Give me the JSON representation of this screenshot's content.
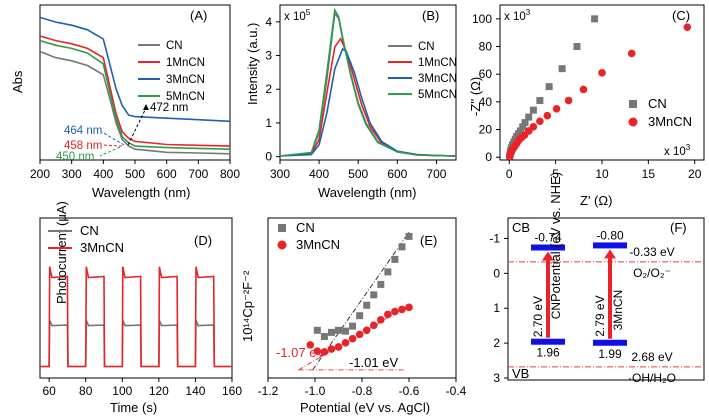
{
  "colors": {
    "CN": "#777777",
    "1MnCN": "#e8242a",
    "3MnCN": "#1f5fb4",
    "5MnCN": "#2e9c4a",
    "blue_bar": "#1010e6",
    "red_arrow": "#e8242a",
    "dashdot": "#dd4444"
  },
  "chart_data": [
    {
      "id": "A",
      "type": "line",
      "panel_label": "(A)",
      "xlabel": "Wavelength (nm)",
      "ylabel": "Abs",
      "xlim": [
        200,
        800
      ],
      "xticks": [
        "200",
        "300",
        "400",
        "500",
        "600",
        "700",
        "800"
      ],
      "series": [
        {
          "name": "CN",
          "x": [
            200,
            250,
            300,
            350,
            400,
            420,
            440,
            460,
            480,
            500,
            600,
            700,
            800
          ],
          "y": [
            0.7,
            0.66,
            0.64,
            0.61,
            0.55,
            0.4,
            0.24,
            0.13,
            0.09,
            0.07,
            0.05,
            0.045,
            0.04
          ]
        },
        {
          "name": "1MnCN",
          "x": [
            200,
            250,
            300,
            350,
            400,
            420,
            440,
            460,
            480,
            500,
            600,
            700,
            800
          ],
          "y": [
            0.8,
            0.77,
            0.75,
            0.72,
            0.66,
            0.48,
            0.3,
            0.18,
            0.14,
            0.12,
            0.1,
            0.095,
            0.09
          ]
        },
        {
          "name": "3MnCN",
          "x": [
            200,
            250,
            300,
            350,
            400,
            420,
            440,
            460,
            480,
            500,
            600,
            700,
            800
          ],
          "y": [
            0.92,
            0.89,
            0.87,
            0.84,
            0.78,
            0.62,
            0.46,
            0.35,
            0.29,
            0.28,
            0.27,
            0.26,
            0.25
          ]
        },
        {
          "name": "5MnCN",
          "x": [
            200,
            250,
            300,
            350,
            400,
            420,
            440,
            460,
            480,
            500,
            600,
            700,
            800
          ],
          "y": [
            0.77,
            0.74,
            0.72,
            0.69,
            0.62,
            0.44,
            0.27,
            0.15,
            0.11,
            0.09,
            0.08,
            0.075,
            0.07
          ]
        }
      ],
      "annotations": [
        "472 nm",
        "464 nm",
        "458 nm",
        "450 nm"
      ]
    },
    {
      "id": "B",
      "type": "line",
      "panel_label": "(B)",
      "xlabel": "Wavelength (nm)",
      "ylabel": "Intensity (a.u.)",
      "y_multiplier": "x 10",
      "y_multiplier_exp": "5",
      "xlim": [
        300,
        750
      ],
      "ylim": [
        -0.1,
        4.5
      ],
      "xticks": [
        "300",
        "400",
        "500",
        "600",
        "700"
      ],
      "yticks": [
        "0",
        "1",
        "2",
        "3",
        "4"
      ],
      "series": [
        {
          "name": "CN",
          "x": [
            300,
            380,
            400,
            420,
            440,
            450,
            460,
            480,
            500,
            520,
            550,
            600,
            650,
            700,
            750
          ],
          "y": [
            0.02,
            0.1,
            0.7,
            2.3,
            4.25,
            4.1,
            3.5,
            2.5,
            1.6,
            1.0,
            0.45,
            0.15,
            0.06,
            0.03,
            0.02
          ]
        },
        {
          "name": "1MnCN",
          "x": [
            300,
            380,
            400,
            420,
            440,
            455,
            470,
            490,
            510,
            530,
            560,
            600,
            650,
            700,
            750
          ],
          "y": [
            0.02,
            0.08,
            0.5,
            1.9,
            3.25,
            3.5,
            3.1,
            2.3,
            1.5,
            0.9,
            0.4,
            0.14,
            0.05,
            0.03,
            0.02
          ]
        },
        {
          "name": "3MnCN",
          "x": [
            300,
            380,
            400,
            420,
            440,
            460,
            470,
            490,
            510,
            530,
            560,
            600,
            650,
            700,
            750
          ],
          "y": [
            0.02,
            0.06,
            0.35,
            1.3,
            2.6,
            3.2,
            3.1,
            2.5,
            1.7,
            1.0,
            0.45,
            0.16,
            0.06,
            0.03,
            0.02
          ]
        },
        {
          "name": "5MnCN",
          "x": [
            300,
            380,
            400,
            420,
            440,
            450,
            460,
            480,
            500,
            520,
            550,
            600,
            650,
            700,
            750
          ],
          "y": [
            0.02,
            0.12,
            0.8,
            2.5,
            4.35,
            4.15,
            3.55,
            2.45,
            1.55,
            0.95,
            0.42,
            0.14,
            0.05,
            0.03,
            0.02
          ]
        }
      ]
    },
    {
      "id": "C",
      "type": "scatter",
      "panel_label": "(C)",
      "xlabel": "Z' (Ω)",
      "ylabel": "-Z'' (Ω)",
      "y_multiplier": "x 10",
      "y_multiplier_exp": "3",
      "x_multiplier": "x 10",
      "x_multiplier_exp": "3",
      "xlim": [
        -1,
        21
      ],
      "ylim": [
        -2,
        110
      ],
      "xticks": [
        "0",
        "5",
        "10",
        "15",
        "20"
      ],
      "yticks": [
        "0",
        "20",
        "40",
        "60",
        "80",
        "100"
      ],
      "series": [
        {
          "name": "CN",
          "x": [
            0.05,
            0.1,
            0.15,
            0.25,
            0.35,
            0.5,
            0.65,
            0.8,
            1.0,
            1.2,
            1.45,
            1.7,
            2.1,
            2.6,
            3.3,
            4.3,
            5.7,
            7.3,
            9.2
          ],
          "y": [
            1,
            3,
            5,
            7,
            9,
            11,
            13,
            15,
            17,
            19,
            22,
            25,
            29,
            34,
            41,
            51,
            64,
            80,
            100
          ]
        },
        {
          "name": "3MnCN",
          "x": [
            0.05,
            0.1,
            0.2,
            0.3,
            0.45,
            0.6,
            0.8,
            1.0,
            1.3,
            1.65,
            2.1,
            2.6,
            3.3,
            4.1,
            5.1,
            6.4,
            8.0,
            10.0,
            13.2,
            19.2
          ],
          "y": [
            0.5,
            2,
            3.5,
            5,
            6.5,
            8,
            10,
            12,
            14,
            16,
            19,
            22,
            26,
            30,
            35,
            41,
            49,
            61,
            75,
            94
          ]
        }
      ]
    },
    {
      "id": "D",
      "type": "line",
      "panel_label": "(D)",
      "xlabel": "Time (s)",
      "ylabel": "Photocurrent (μA)",
      "xlim": [
        55,
        160
      ],
      "ylim": [
        0,
        1.0
      ],
      "xticks": [
        "60",
        "80",
        "100",
        "120",
        "140",
        "160"
      ],
      "series": [
        {
          "name": "CN",
          "on_level": 0.26,
          "off_level": 0.03,
          "on_intervals": [
            [
              60,
              70
            ],
            [
              80,
              90
            ],
            [
              100,
              110
            ],
            [
              120,
              130
            ],
            [
              140,
              150
            ]
          ]
        },
        {
          "name": "3MnCN",
          "on_level": 0.53,
          "off_level": 0.03,
          "on_intervals": [
            [
              60,
              70
            ],
            [
              80,
              90
            ],
            [
              100,
              110
            ],
            [
              120,
              130
            ],
            [
              140,
              150
            ]
          ]
        }
      ]
    },
    {
      "id": "E",
      "type": "scatter",
      "panel_label": "(E)",
      "xlabel": "Potential (eV vs. AgCl)",
      "ylabel": "10¹⁴Cp⁻²F⁻²",
      "xlim": [
        -1.2,
        -0.4
      ],
      "ylim": [
        0,
        4.0
      ],
      "xticks": [
        "-1.2",
        "-1.0",
        "-0.8",
        "-0.6",
        "-0.4"
      ],
      "series": [
        {
          "name": "CN",
          "x": [
            -0.99,
            -0.96,
            -0.93,
            -0.9,
            -0.87,
            -0.84,
            -0.81,
            -0.78,
            -0.75,
            -0.72,
            -0.69,
            -0.66,
            -0.63,
            -0.6
          ],
          "y": [
            1.5,
            1.35,
            1.45,
            1.5,
            1.48,
            1.6,
            1.85,
            2.1,
            2.35,
            2.6,
            2.9,
            3.2,
            3.5,
            3.75
          ]
        },
        {
          "name": "3MnCN",
          "x": [
            -1.02,
            -0.99,
            -0.96,
            -0.93,
            -0.9,
            -0.87,
            -0.84,
            -0.81,
            -0.78,
            -0.75,
            -0.72,
            -0.69,
            -0.66,
            -0.63,
            -0.6
          ],
          "y": [
            1.15,
            1.0,
            0.98,
            1.05,
            1.1,
            1.2,
            1.3,
            1.4,
            1.5,
            1.62,
            1.75,
            1.88,
            1.95,
            2.0,
            2.05
          ]
        }
      ],
      "annotations": [
        "-1.07 eV",
        "-1.01 eV"
      ]
    },
    {
      "id": "F",
      "type": "diagram",
      "panel_label": "(F)",
      "ylabel": "Potential (eV vs. NHE)",
      "ylim": [
        -1.5,
        3
      ],
      "yticks": [
        "-1",
        "0",
        "1",
        "2",
        "3"
      ],
      "cb_label": "CB",
      "vb_label": "VB",
      "materials": [
        {
          "name": "CN",
          "cb": -0.74,
          "vb": 1.96,
          "gap": "2.70 eV",
          "cb_text": "-0.74",
          "vb_text": "1.96"
        },
        {
          "name": "3MnCN",
          "cb": -0.8,
          "vb": 1.99,
          "gap": "2.79 eV",
          "cb_text": "-0.80",
          "vb_text": "1.99"
        }
      ],
      "ref_lines": [
        {
          "value": -0.33,
          "label": "-0.33 eV",
          "species": "O₂/O₂⁻"
        },
        {
          "value": 2.68,
          "label": "2.68 eV",
          "species": "·OH/H₂O"
        }
      ]
    }
  ]
}
